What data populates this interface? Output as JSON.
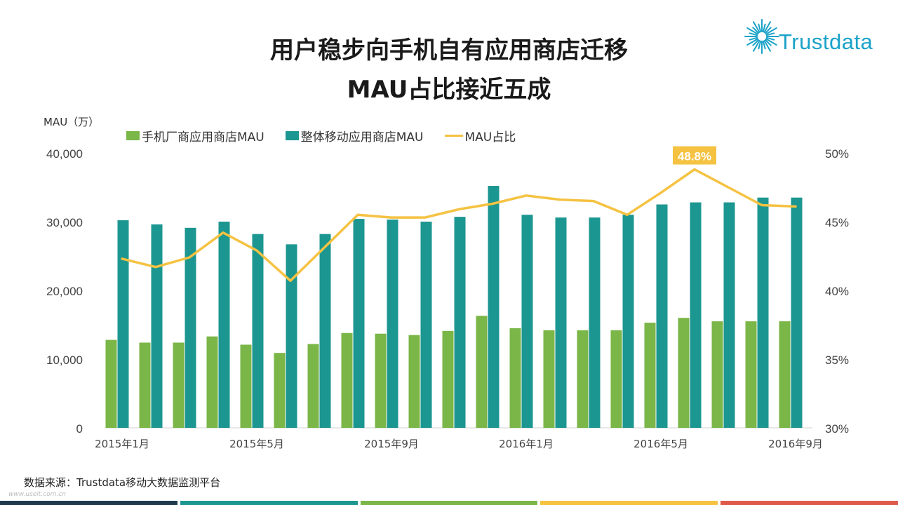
{
  "title_line1": "用户稳步向手机自有应用商店迁移",
  "title_line2": "MAU占比接近五成",
  "logo_text": "Trustdata",
  "y_axis_label": "MAU（万）",
  "source": "数据来源：Trustdata移动大数据监测平台",
  "watermark": "www.useit.com.cn",
  "colors": {
    "green": "#7ab648",
    "teal": "#1c9690",
    "yellow": "#f5c242",
    "logo": "#1aa2c9",
    "bottombar": [
      "#1f3a4d",
      "#1c9690",
      "#7ab648",
      "#f5c242",
      "#e05a4b"
    ]
  },
  "chart_data": {
    "type": "bar",
    "categories": [
      "2015年1月",
      "2015年2月",
      "2015年3月",
      "2015年4月",
      "2015年5月",
      "2015年6月",
      "2015年7月",
      "2015年8月",
      "2015年9月",
      "2015年10月",
      "2015年11月",
      "2015年12月",
      "2016年1月",
      "2016年2月",
      "2016年3月",
      "2016年4月",
      "2016年5月",
      "2016年6月",
      "2016年7月",
      "2016年8月",
      "2016年9月"
    ],
    "x_tick_labels": [
      "2015年1月",
      "2015年5月",
      "2015年9月",
      "2016年1月",
      "2016年5月",
      "2016年9月"
    ],
    "series": [
      {
        "name": "手机厂商应用商店MAU",
        "axis": "left",
        "chart_type": "bar",
        "values": [
          12800,
          12400,
          12400,
          13300,
          12100,
          10900,
          12200,
          13800,
          13700,
          13500,
          14100,
          16300,
          14500,
          14200,
          14200,
          14200,
          15300,
          16000,
          15500,
          15500,
          15500
        ]
      },
      {
        "name": "整体移动应用商店MAU",
        "axis": "left",
        "chart_type": "bar",
        "values": [
          30200,
          29600,
          29100,
          30000,
          28200,
          26700,
          28200,
          30400,
          30300,
          30000,
          30700,
          35200,
          31000,
          30600,
          30600,
          31000,
          32500,
          32800,
          32800,
          33500,
          33500
        ]
      },
      {
        "name": "MAU占比",
        "axis": "right",
        "chart_type": "line",
        "values": [
          42.3,
          41.7,
          42.4,
          44.2,
          42.9,
          40.7,
          43.1,
          45.5,
          45.3,
          45.3,
          45.9,
          46.3,
          46.9,
          46.6,
          46.5,
          45.5,
          47.1,
          48.8,
          47.5,
          46.2,
          46.1
        ]
      }
    ],
    "left_axis": {
      "min": 0,
      "max": 40000,
      "ticks": [
        0,
        10000,
        20000,
        30000,
        40000
      ],
      "tick_labels": [
        "0",
        "10,000",
        "20,000",
        "30,000",
        "40,000"
      ]
    },
    "right_axis": {
      "min": 30,
      "max": 50,
      "ticks": [
        30,
        35,
        40,
        45,
        50
      ],
      "tick_labels": [
        "30%",
        "35%",
        "40%",
        "45%",
        "50%"
      ]
    },
    "annotation": {
      "label": "48.8%",
      "index": 17
    },
    "grid": false,
    "legend_placement": "top"
  }
}
